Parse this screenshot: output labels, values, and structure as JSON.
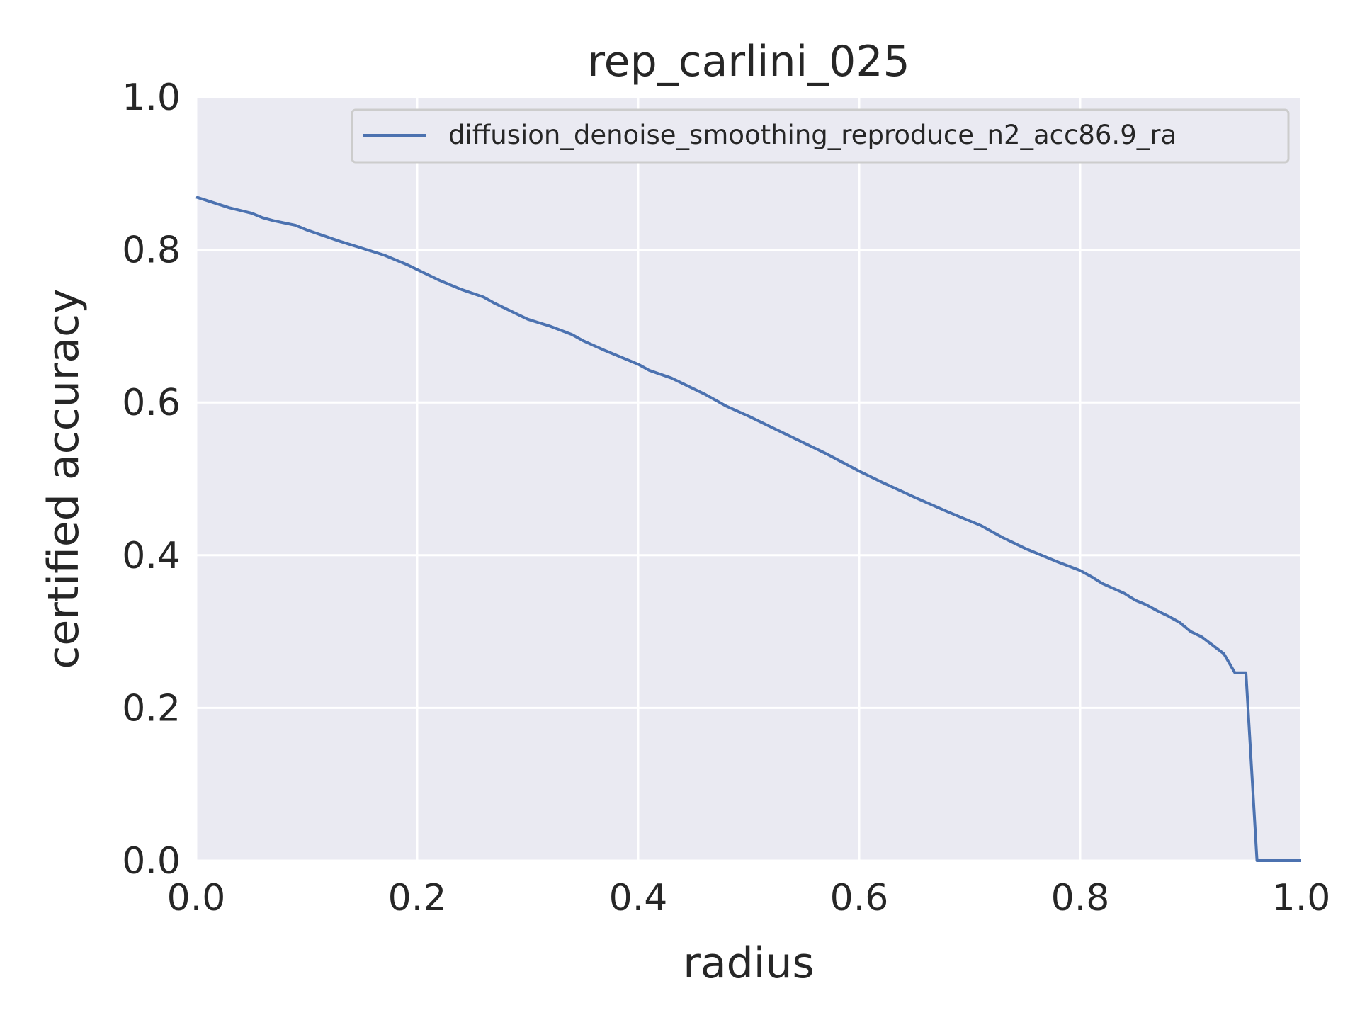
{
  "chart_data": {
    "type": "line",
    "title": "rep_carlini_025",
    "xlabel": "radius",
    "ylabel": "certified accuracy",
    "xlim": [
      0.0,
      1.0
    ],
    "ylim": [
      0.0,
      1.0
    ],
    "x_ticks": [
      "0.0",
      "0.2",
      "0.4",
      "0.6",
      "0.8",
      "1.0"
    ],
    "y_ticks": [
      "0.0",
      "0.2",
      "0.4",
      "0.6",
      "0.8",
      "1.0"
    ],
    "grid": true,
    "legend_position": "top-right",
    "colors": {
      "plot_background": "#eaeaf2",
      "grid": "#ffffff",
      "series": "#4c72b0",
      "text": "#262626"
    },
    "series": [
      {
        "name": "diffusion_denoise_smoothing_reproduce_n2_acc86.9_ra",
        "x": [
          0.0,
          0.03,
          0.05,
          0.06,
          0.07,
          0.09,
          0.1,
          0.13,
          0.17,
          0.19,
          0.22,
          0.24,
          0.26,
          0.27,
          0.29,
          0.3,
          0.32,
          0.34,
          0.35,
          0.37,
          0.39,
          0.4,
          0.41,
          0.43,
          0.46,
          0.48,
          0.5,
          0.52,
          0.55,
          0.57,
          0.6,
          0.62,
          0.65,
          0.68,
          0.71,
          0.73,
          0.75,
          0.78,
          0.8,
          0.81,
          0.82,
          0.84,
          0.85,
          0.86,
          0.87,
          0.88,
          0.89,
          0.9,
          0.91,
          0.92,
          0.93,
          0.94,
          0.95,
          0.96,
          1.0
        ],
        "y": [
          0.869,
          0.855,
          0.848,
          0.842,
          0.838,
          0.832,
          0.826,
          0.811,
          0.793,
          0.781,
          0.76,
          0.748,
          0.738,
          0.73,
          0.716,
          0.709,
          0.7,
          0.689,
          0.681,
          0.668,
          0.656,
          0.65,
          0.642,
          0.632,
          0.611,
          0.595,
          0.582,
          0.568,
          0.547,
          0.533,
          0.51,
          0.496,
          0.476,
          0.457,
          0.439,
          0.423,
          0.409,
          0.391,
          0.38,
          0.372,
          0.363,
          0.35,
          0.341,
          0.335,
          0.327,
          0.32,
          0.312,
          0.3,
          0.293,
          0.282,
          0.271,
          0.246,
          0.246,
          0.0,
          0.0
        ]
      }
    ]
  }
}
